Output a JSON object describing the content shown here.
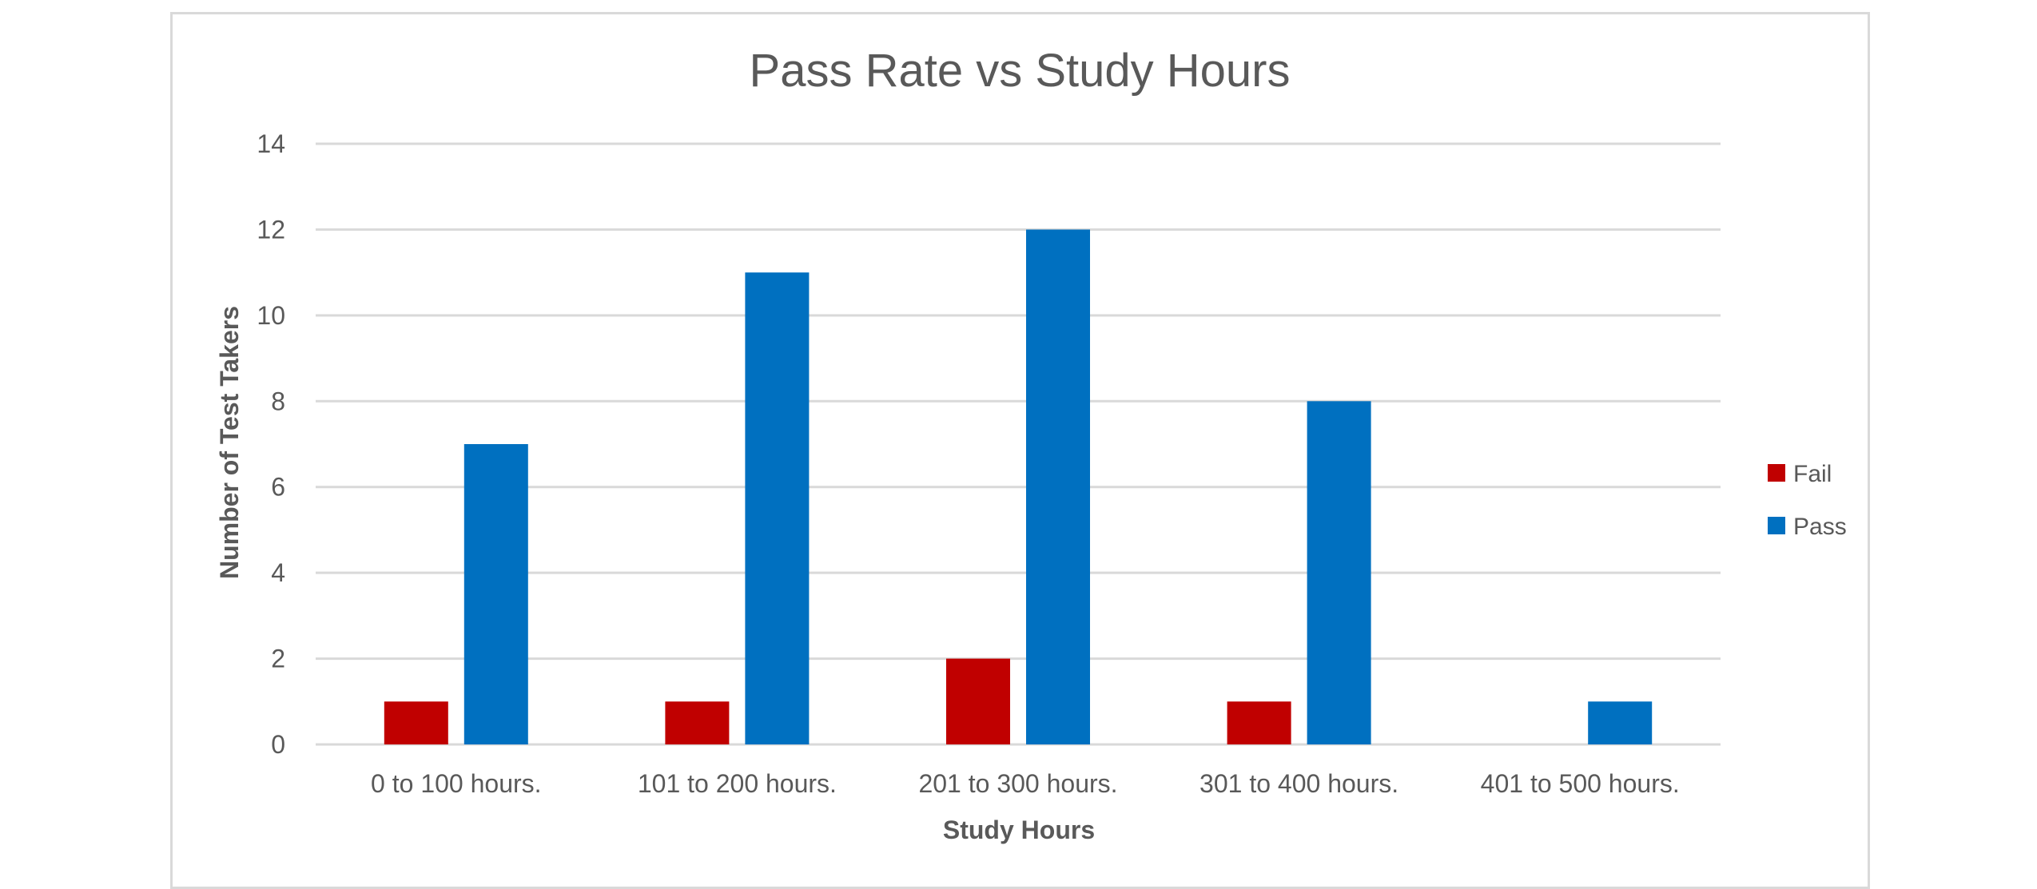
{
  "chart_data": {
    "type": "bar",
    "title": "Pass Rate vs Study Hours",
    "xlabel": "Study Hours",
    "ylabel": "Number of Test Takers",
    "categories": [
      "0 to 100 hours.",
      "101 to 200 hours.",
      "201 to 300 hours.",
      "301 to 400 hours.",
      "401 to 500 hours."
    ],
    "series": [
      {
        "name": "Fail",
        "color": "#c00000",
        "values": [
          1,
          1,
          2,
          1,
          0
        ]
      },
      {
        "name": "Pass",
        "color": "#0070c0",
        "values": [
          7,
          11,
          12,
          8,
          1
        ]
      }
    ],
    "ylim": [
      0,
      14
    ],
    "yticks": [
      0,
      2,
      4,
      6,
      8,
      10,
      12,
      14
    ],
    "grid": true,
    "legend_position": "right"
  }
}
